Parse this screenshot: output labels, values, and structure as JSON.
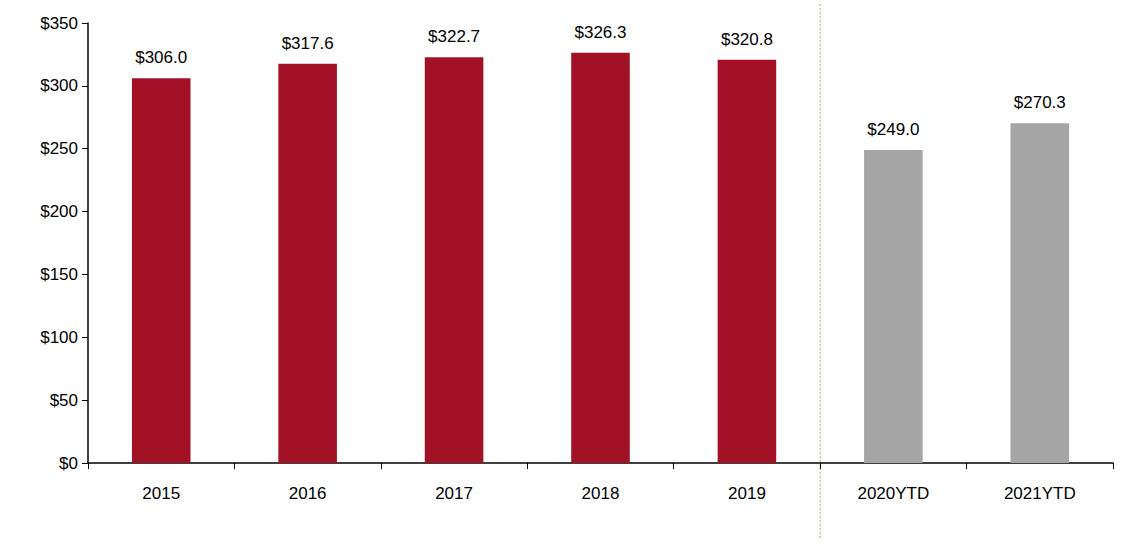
{
  "chart_data": {
    "type": "bar",
    "categories": [
      "2015",
      "2016",
      "2017",
      "2018",
      "2019",
      "2020YTD",
      "2021YTD"
    ],
    "values": [
      306.0,
      317.6,
      322.7,
      326.3,
      320.8,
      249.0,
      270.3
    ],
    "value_labels": [
      "$306.0",
      "$317.6",
      "$322.7",
      "$326.3",
      "$320.8",
      "$249.0",
      "$270.3"
    ],
    "colors": [
      "#A31127",
      "#A31127",
      "#A31127",
      "#A31127",
      "#A31127",
      "#A5A5A5",
      "#A5A5A5"
    ],
    "ylim": [
      0,
      350
    ],
    "yticks": [
      {
        "value": 0,
        "label": "$0"
      },
      {
        "value": 50,
        "label": "$50"
      },
      {
        "value": 100,
        "label": "$100"
      },
      {
        "value": 150,
        "label": "$150"
      },
      {
        "value": 200,
        "label": "$200"
      },
      {
        "value": 250,
        "label": "$250"
      },
      {
        "value": 300,
        "label": "$300"
      },
      {
        "value": 350,
        "label": "$350"
      }
    ],
    "grid": false,
    "data_labels": true
  }
}
